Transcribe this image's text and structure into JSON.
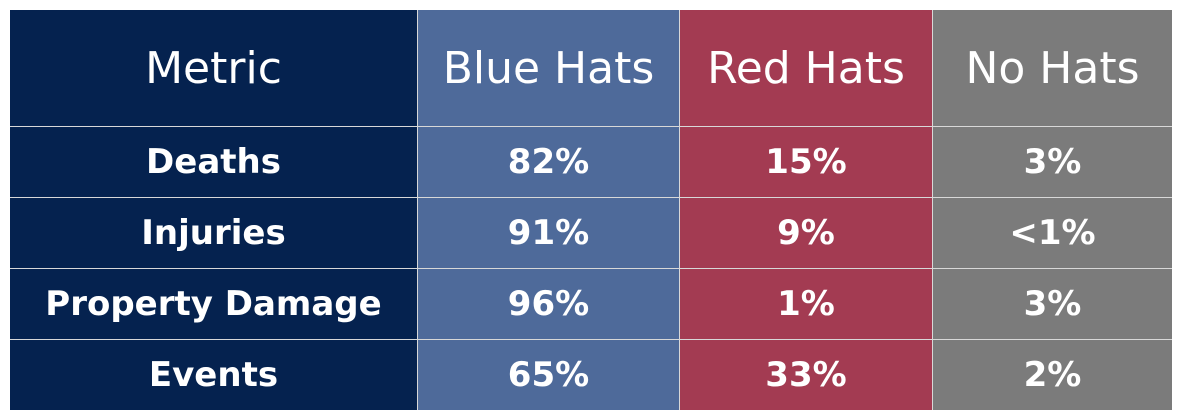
{
  "table": {
    "header": [
      "Metric",
      "Blue Hats",
      "Red Hats",
      "No Hats"
    ],
    "rows": [
      [
        "Deaths",
        "82%",
        "15%",
        "3%"
      ],
      [
        "Injuries",
        "91%",
        "9%",
        "<1%"
      ],
      [
        "Property Damage",
        "96%",
        "1%",
        "3%"
      ],
      [
        "Events",
        "65%",
        "33%",
        "2%"
      ]
    ]
  }
}
